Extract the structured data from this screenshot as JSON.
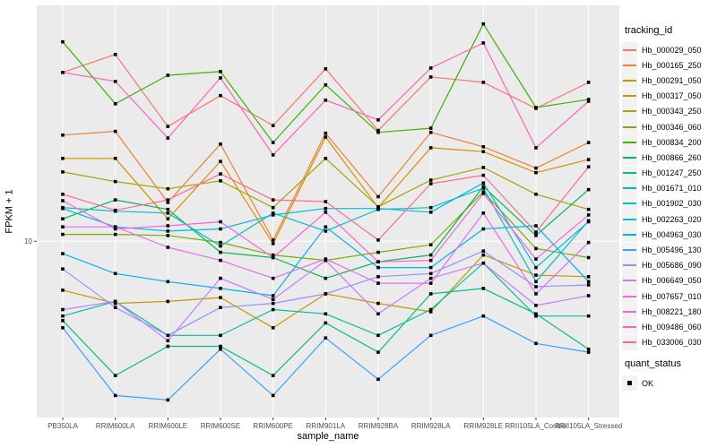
{
  "figure": {
    "background": "#FFFFFF",
    "panel_background": "#EBEBEB",
    "gridline_color": "#FFFFFF",
    "axis_text_color": "#4D4D4D",
    "marker_color": "#000000"
  },
  "x_axis": {
    "title": "sample_name"
  },
  "y_axis": {
    "title": "FPKM + 1",
    "tick_labels": [
      "10"
    ]
  },
  "legend": {
    "tracking_title": "tracking_id",
    "quant_title": "quant_status",
    "quant_label": "OK"
  },
  "chart_data": {
    "type": "line",
    "title": "",
    "xlabel": "sample_name",
    "ylabel": "FPKM + 1",
    "yscale": "log10",
    "ylim": [
      2.24,
      74
    ],
    "y_major_gridlines": [
      10
    ],
    "grid": "on",
    "legend_position": "right",
    "point_marker": "black-square",
    "categories": [
      "PB350LA",
      "RRIM600LA",
      "RRIM600LE",
      "RRIM600SE",
      "RRIM600PE",
      "RRIM901LA",
      "RRIM928BA",
      "RRIM928LA",
      "RRIM928LE",
      "RRII105LA_Control",
      "RRII105LA_Stressed"
    ],
    "series": [
      {
        "name": "Hb_000029_050",
        "color": "#F8766D",
        "values": [
          41.9,
          48.8,
          26.5,
          34.4,
          26.7,
          43.2,
          25.6,
          40.3,
          38.5,
          30.9,
          38.5
        ]
      },
      {
        "name": "Hb_000165_250",
        "color": "#EA8331",
        "values": [
          24.6,
          25.4,
          13.9,
          22.8,
          10.1,
          25.0,
          14.6,
          25.2,
          22.3,
          18.6,
          23.1
        ]
      },
      {
        "name": "Hb_000291_050",
        "color": "#D89000",
        "values": [
          20.2,
          20.2,
          12.1,
          19.7,
          9.8,
          24.2,
          13.3,
          22.1,
          21.4,
          17.9,
          20.0
        ]
      },
      {
        "name": "Hb_000317_050",
        "color": "#C09B00",
        "values": [
          6.6,
          5.9,
          6.0,
          6.2,
          4.8,
          6.4,
          5.9,
          5.5,
          8.9,
          7.5,
          7.4
        ]
      },
      {
        "name": "Hb_000343_250",
        "color": "#A3A500",
        "values": [
          18.0,
          16.6,
          15.6,
          16.7,
          13.3,
          20.2,
          13.4,
          16.8,
          18.7,
          14.9,
          13.1
        ]
      },
      {
        "name": "Hb_000346_060",
        "color": "#7CAE00",
        "values": [
          10.6,
          10.6,
          10.5,
          9.9,
          8.9,
          8.5,
          9.1,
          9.7,
          15.2,
          9.4,
          8.7
        ]
      },
      {
        "name": "Hb_000834_200",
        "color": "#39B600",
        "values": [
          54.3,
          32.1,
          40.9,
          42.2,
          23.1,
          37.7,
          25.2,
          26.1,
          63.2,
          31.1,
          33.3
        ]
      },
      {
        "name": "Hb_000866_260",
        "color": "#00BB4E",
        "values": [
          12.1,
          14.2,
          13.1,
          9.1,
          8.7,
          7.3,
          8.4,
          8.9,
          15.9,
          10.5,
          15.5
        ]
      },
      {
        "name": "Hb_001247_250",
        "color": "#00C079",
        "values": [
          5.1,
          3.2,
          4.1,
          4.1,
          3.2,
          5.0,
          3.9,
          6.4,
          6.7,
          5.4,
          4.0
        ]
      },
      {
        "name": "Hb_001671_010",
        "color": "#00C19C",
        "values": [
          5.3,
          6.0,
          4.5,
          4.5,
          5.6,
          5.4,
          4.5,
          5.6,
          8.3,
          5.3,
          5.3
        ]
      },
      {
        "name": "Hb_001902_030",
        "color": "#00BFC4",
        "values": [
          13.3,
          12.9,
          12.7,
          9.6,
          12.7,
          10.9,
          13.1,
          13.3,
          15.7,
          7.1,
          11.9
        ]
      },
      {
        "name": "Hb_002263_020",
        "color": "#00BAE0",
        "values": [
          13.2,
          11.3,
          10.9,
          11.1,
          12.5,
          13.2,
          13.2,
          12.8,
          16.4,
          8.0,
          11.8
        ]
      },
      {
        "name": "Hb_004963_030",
        "color": "#00B0F6",
        "values": [
          9.0,
          7.6,
          7.1,
          6.7,
          6.3,
          11.3,
          8.0,
          8.0,
          11.1,
          11.4,
          7.1
        ]
      },
      {
        "name": "Hb_005496_130",
        "color": "#35A2FF",
        "values": [
          4.8,
          2.7,
          2.6,
          4.0,
          2.7,
          4.4,
          3.1,
          4.5,
          5.3,
          4.2,
          3.9
        ]
      },
      {
        "name": "Hb_005686_090",
        "color": "#9590FF",
        "values": [
          7.9,
          5.7,
          4.5,
          5.7,
          5.9,
          6.4,
          7.4,
          7.6,
          9.2,
          6.8,
          6.9
        ]
      },
      {
        "name": "Hb_006649_050",
        "color": "#C77CFF",
        "values": [
          5.6,
          6.0,
          4.3,
          7.3,
          6.1,
          8.5,
          5.4,
          7.3,
          8.3,
          5.8,
          6.3
        ]
      },
      {
        "name": "Hb_007657_010",
        "color": "#E76BF3",
        "values": [
          11.3,
          11.3,
          9.5,
          8.5,
          7.3,
          8.6,
          7.0,
          7.0,
          12.7,
          6.4,
          9.9
        ]
      },
      {
        "name": "Hb_008221_180",
        "color": "#FA62DB",
        "values": [
          14.1,
          11.1,
          11.4,
          11.8,
          8.7,
          12.8,
          8.4,
          8.5,
          15.0,
          8.6,
          12.5
        ]
      },
      {
        "name": "Hb_009486_060",
        "color": "#FF62BC",
        "values": [
          41.9,
          38.8,
          24.0,
          40.0,
          20.8,
          33.1,
          28.0,
          43.5,
          53.8,
          22.1,
          32.8
        ]
      },
      {
        "name": "Hb_033006_030",
        "color": "#FF6A98",
        "values": [
          14.9,
          13.0,
          14.2,
          17.7,
          14.2,
          14.0,
          10.1,
          16.3,
          17.5,
          10.8,
          18.8
        ]
      }
    ]
  }
}
